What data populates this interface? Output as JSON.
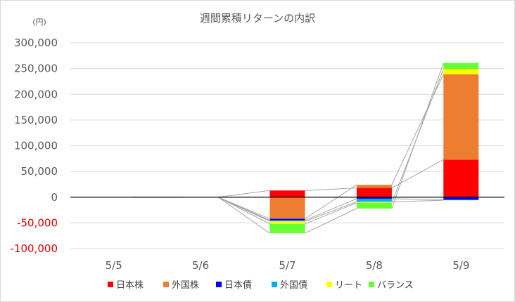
{
  "chart_data": {
    "type": "bar",
    "stacked": true,
    "title": "週間累積リターンの内訳",
    "unit_label": "(円)",
    "categories": [
      "5/5",
      "5/6",
      "5/7",
      "5/8",
      "5/9"
    ],
    "ylim": [
      -100000,
      300000
    ],
    "yticks": [
      {
        "value": 300000,
        "label": "300,000"
      },
      {
        "value": 250000,
        "label": "250,000"
      },
      {
        "value": 200000,
        "label": "200,000"
      },
      {
        "value": 150000,
        "label": "150,000"
      },
      {
        "value": 100000,
        "label": "100,000"
      },
      {
        "value": 50000,
        "label": "50,000"
      },
      {
        "value": 0,
        "label": "0"
      },
      {
        "value": -50000,
        "label": "-50,000"
      },
      {
        "value": -100000,
        "label": "-100,000"
      }
    ],
    "negative_tick_color": "#e00000",
    "grid": true,
    "series_lines": true,
    "legend_position": "bottom",
    "series": [
      {
        "name": "日本株",
        "color": "#ff0000",
        "values": [
          0,
          0,
          13000,
          18000,
          73000
        ]
      },
      {
        "name": "外国株",
        "color": "#ed7d31",
        "values": [
          0,
          0,
          -42000,
          6000,
          166000
        ]
      },
      {
        "name": "日本債",
        "color": "#0000ff",
        "values": [
          0,
          0,
          -3000,
          -3000,
          -5000
        ]
      },
      {
        "name": "外国債",
        "color": "#00b0f0",
        "values": [
          0,
          0,
          -2000,
          -6000,
          -1000
        ]
      },
      {
        "name": "リート",
        "color": "#ffff00",
        "values": [
          0,
          0,
          -5000,
          -2000,
          10000
        ]
      },
      {
        "name": "バランス",
        "color": "#66ff33",
        "values": [
          0,
          0,
          -18000,
          -11000,
          12000
        ]
      }
    ]
  }
}
